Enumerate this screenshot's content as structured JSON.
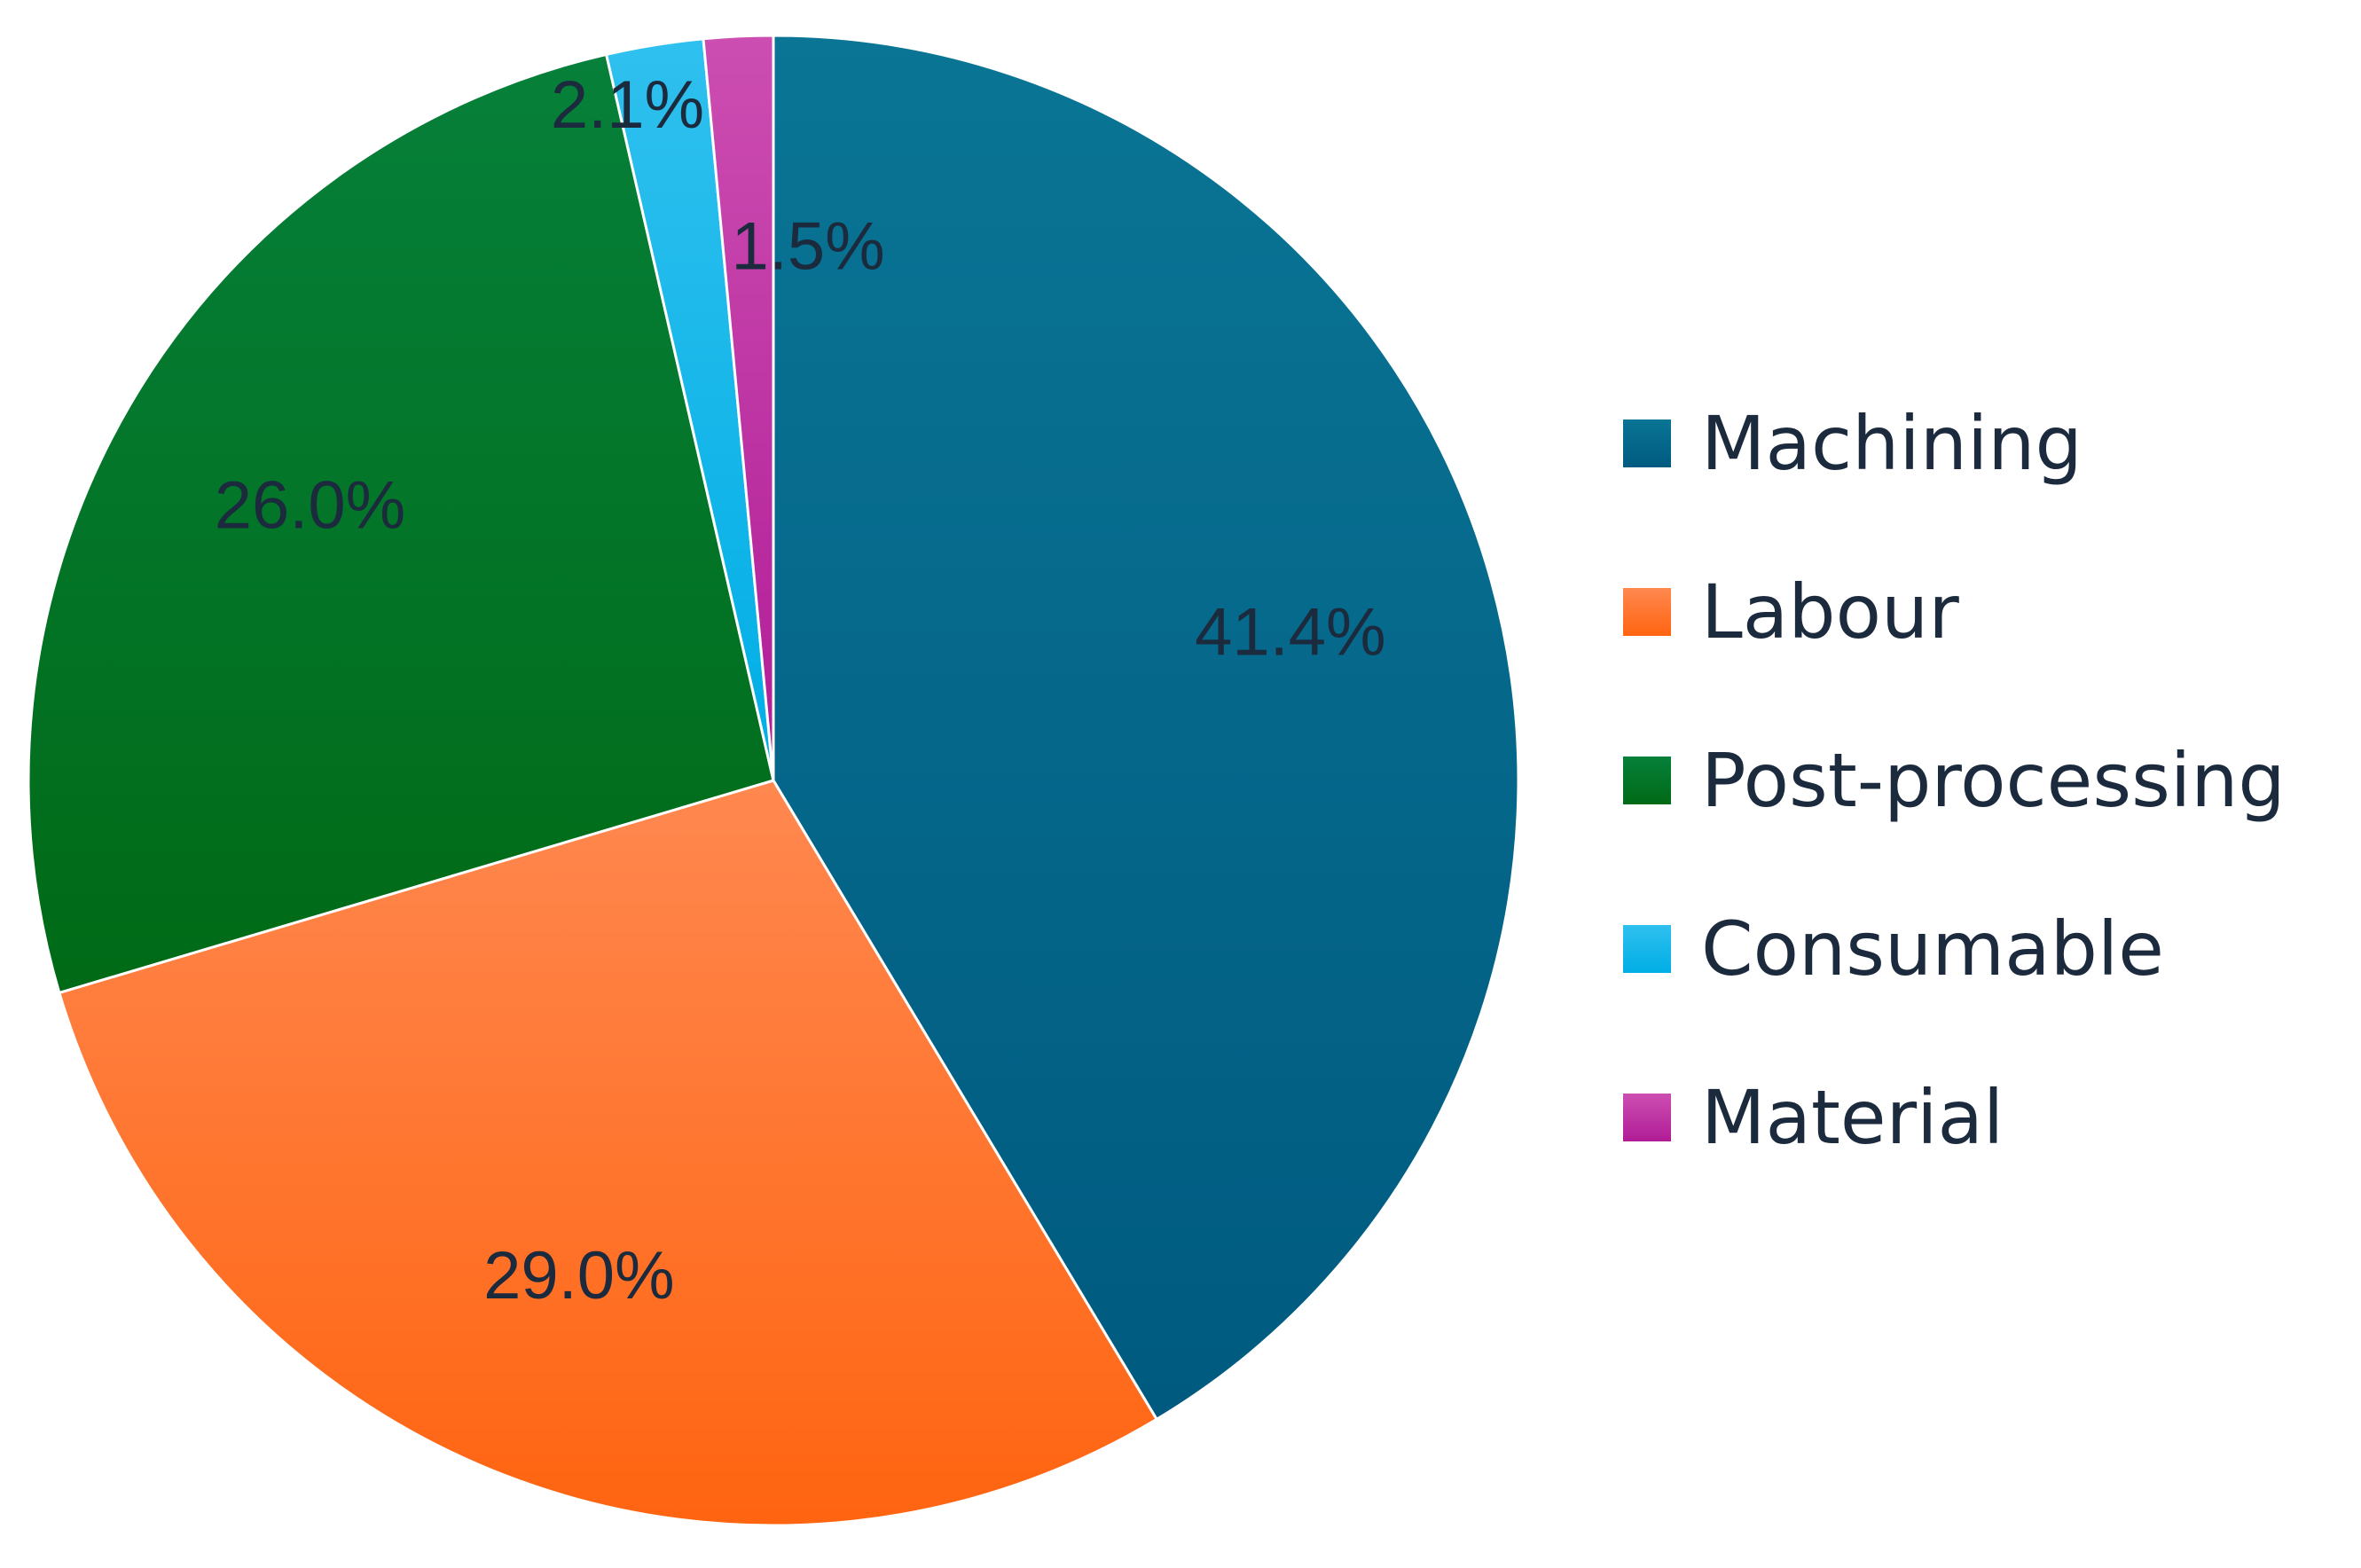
{
  "chart_data": {
    "type": "pie",
    "title": "",
    "start_angle_deg": 0,
    "direction": "clockwise",
    "slices": [
      {
        "name": "Machining",
        "value": 41.4,
        "label": "41.4%",
        "color": "#005a80",
        "color_light": "#0a7595"
      },
      {
        "name": "Labour",
        "value": 29.0,
        "label": "29.0%",
        "color": "#ff6410",
        "color_light": "#ff8850"
      },
      {
        "name": "Post-processing",
        "value": 26.0,
        "label": "26.0%",
        "color": "#006a16",
        "color_light": "#06803a"
      },
      {
        "name": "Consumable",
        "value": 2.1,
        "label": "2.1%",
        "color": "#00aee6",
        "color_light": "#2fc0ee"
      },
      {
        "name": "Material",
        "value": 1.5,
        "label": "1.5%",
        "color": "#b01c96",
        "color_light": "#cc4eb2"
      }
    ],
    "legend_position": "right",
    "legend": [
      "Machining",
      "Labour",
      "Post-processing",
      "Consumable",
      "Material"
    ]
  }
}
